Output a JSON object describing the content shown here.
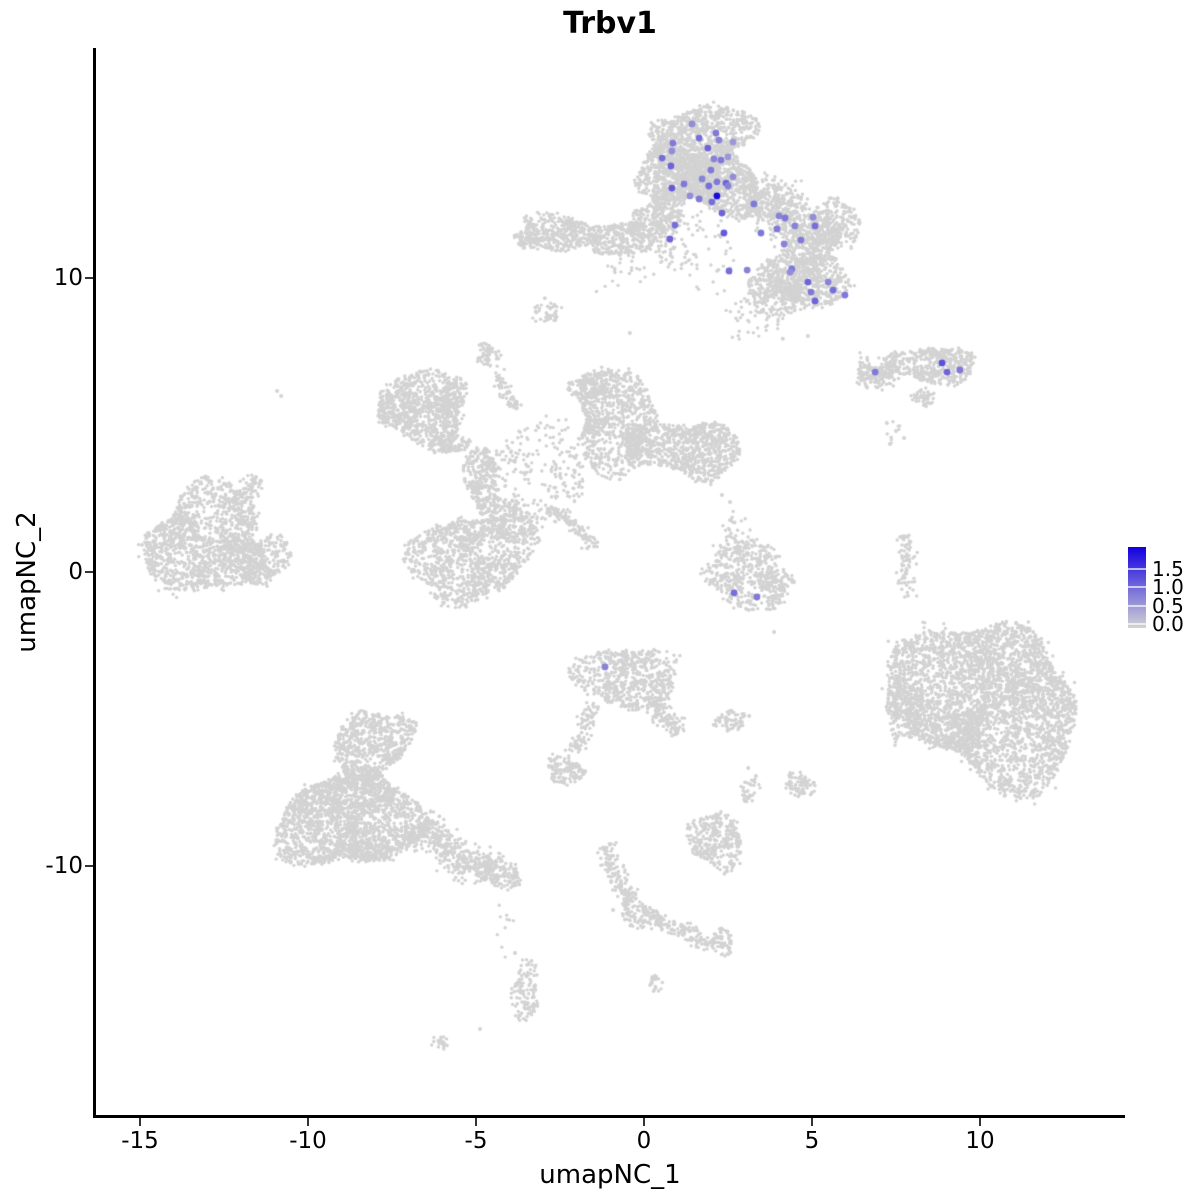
{
  "chart_data": {
    "type": "scatter",
    "title": "Trbv1",
    "xlabel": "umapNC_1",
    "ylabel": "umapNC_2",
    "x_tick_labels": [
      "-15",
      "-10",
      "-5",
      "0",
      "5",
      "10"
    ],
    "x_tick_values": [
      -15,
      -10,
      -5,
      0,
      5,
      10
    ],
    "y_tick_labels": [
      "10",
      "0",
      "-10"
    ],
    "y_tick_values": [
      10,
      0,
      -10
    ],
    "xlim": [
      -16.3,
      14.3
    ],
    "ylim": [
      -18.6,
      17.8
    ],
    "grid": false,
    "legend_position": "right",
    "legend": {
      "tick_labels": [
        "1.5",
        "1.0",
        "0.5",
        "0.0"
      ],
      "tick_values": [
        1.5,
        1.0,
        0.5,
        0.0
      ],
      "min": 0,
      "max": 2.1,
      "low_color": "#d3d3d3",
      "high_color": "#1200e0"
    },
    "colors": {
      "background": "#ffffff",
      "gray_points": "#d3d3d3",
      "axis": "#000000"
    },
    "point_radius": {
      "gray": 1.7,
      "expressing": 3.4
    },
    "gray_clusters": {
      "blobs": [
        [
          1.67,
          14.69,
          1.49,
          1.19,
          1000,
          0
        ],
        [
          1.07,
          13.5,
          1.19,
          1.02,
          650,
          0
        ],
        [
          2.41,
          13.16,
          1.13,
          1.02,
          650,
          0
        ],
        [
          0.71,
          12.31,
          0.54,
          1.36,
          250,
          0
        ],
        [
          5.6,
          11.7,
          0.77,
          0.95,
          220,
          0
        ],
        [
          4.79,
          9.93,
          1.25,
          0.95,
          550,
          0
        ],
        [
          3.9,
          9.42,
          0.89,
          0.68,
          230,
          0
        ],
        [
          4.64,
          10.61,
          0.89,
          0.85,
          180,
          0
        ],
        [
          -0.71,
          11.36,
          1.19,
          0.61,
          300,
          0
        ],
        [
          -2.5,
          11.56,
          1.13,
          0.68,
          350,
          0
        ],
        [
          -3.45,
          11.36,
          0.42,
          0.37,
          60,
          0
        ],
        [
          0.12,
          11.8,
          0.54,
          0.75,
          150,
          0
        ],
        [
          -2.89,
          8.88,
          0.39,
          0.44,
          50,
          0
        ],
        [
          1.67,
          10.95,
          1.34,
          1.36,
          70,
          1
        ],
        [
          3.3,
          8.74,
          1.04,
          0.68,
          50,
          1
        ],
        [
          -0.57,
          10.1,
          0.89,
          0.75,
          25,
          1
        ],
        [
          8.66,
          7.04,
          1.13,
          0.71,
          400,
          0
        ],
        [
          7.47,
          4.76,
          0.36,
          0.41,
          8,
          1
        ],
        [
          -13.07,
          1.09,
          1.85,
          1.7,
          1400,
          0
        ],
        [
          -11.37,
          0.41,
          0.74,
          0.95,
          280,
          0
        ],
        [
          -4.67,
          7.35,
          0.33,
          0.44,
          60,
          0
        ],
        [
          -6.67,
          5.58,
          1.37,
          1.09,
          800,
          0
        ],
        [
          -5.63,
          6.02,
          0.36,
          0.61,
          100,
          0
        ],
        [
          -5.83,
          4.39,
          0.51,
          0.41,
          130,
          0
        ],
        [
          -4.82,
          3.2,
          0.51,
          1.12,
          260,
          0
        ],
        [
          -0.86,
          5.17,
          1.25,
          1.63,
          850,
          0
        ],
        [
          -1.46,
          6.36,
          0.74,
          0.48,
          150,
          0
        ],
        [
          1.52,
          4.15,
          1.25,
          1.09,
          750,
          0
        ],
        [
          -0.18,
          4.22,
          0.42,
          0.68,
          150,
          0
        ],
        [
          -3.24,
          3.3,
          1.79,
          1.53,
          260,
          1
        ],
        [
          -5.18,
          0.48,
          1.7,
          1.6,
          1050,
          0
        ],
        [
          -4.14,
          1.77,
          0.74,
          0.85,
          220,
          0
        ],
        [
          3.01,
          -0.1,
          1.34,
          1.09,
          420,
          0
        ],
        [
          3.9,
          -0.44,
          0.54,
          0.51,
          100,
          0
        ],
        [
          2.71,
          1.09,
          0.54,
          0.95,
          45,
          1
        ],
        [
          10.24,
          -4.42,
          2.62,
          2.79,
          3600,
          0
        ],
        [
          7.77,
          -4.69,
          0.65,
          0.95,
          220,
          0
        ],
        [
          8.51,
          -2.59,
          1.04,
          1.02,
          22,
          1
        ],
        [
          -0.48,
          -3.61,
          1.34,
          1.19,
          620,
          0
        ],
        [
          -2.35,
          -6.73,
          0.54,
          0.51,
          130,
          0
        ],
        [
          2.56,
          -5.07,
          0.54,
          0.31,
          70,
          0
        ],
        [
          3.15,
          -7.41,
          0.24,
          0.44,
          35,
          0
        ],
        [
          4.64,
          -7.24,
          0.42,
          0.44,
          80,
          0
        ],
        [
          2.14,
          -9.12,
          0.89,
          0.85,
          320,
          0
        ],
        [
          -8.1,
          -5.88,
          1.25,
          1.12,
          650,
          0
        ],
        [
          -8.75,
          -8.44,
          1.96,
          1.77,
          2100,
          0
        ],
        [
          -4.29,
          -10.27,
          0.6,
          0.51,
          140,
          0
        ],
        [
          -4.14,
          -12.01,
          0.36,
          0.85,
          10,
          1
        ],
        [
          -3.54,
          -14.29,
          0.39,
          1.02,
          120,
          0
        ],
        [
          -6.07,
          -16.02,
          0.24,
          0.24,
          22,
          0
        ],
        [
          -0.12,
          -11.67,
          0.6,
          0.44,
          110,
          0
        ],
        [
          2.32,
          -12.59,
          0.36,
          0.41,
          60,
          0
        ],
        [
          0.39,
          -13.98,
          0.21,
          0.34,
          22,
          0
        ]
      ],
      "bands": [
        [
          3.1,
          12.72,
          5.77,
          11.23,
          1.25,
          700
        ],
        [
          6.37,
          6.8,
          7.62,
          6.8,
          0.72,
          220
        ],
        [
          8.21,
          6.19,
          8.51,
          5.71,
          0.4,
          50
        ],
        [
          -12.32,
          2.11,
          -11.49,
          3.2,
          0.45,
          90
        ],
        [
          -4.38,
          6.8,
          -3.84,
          5.51,
          0.3,
          60
        ],
        [
          -2.8,
          2.28,
          -1.37,
          0.75,
          0.3,
          110
        ],
        [
          7.71,
          1.26,
          7.92,
          -0.88,
          0.36,
          80
        ],
        [
          0.33,
          -4.35,
          0.92,
          -5.54,
          0.5,
          130
        ],
        [
          -1.46,
          -4.52,
          -2.11,
          -6.22,
          0.4,
          90
        ],
        [
          -6.9,
          -8.71,
          -4.52,
          -10.2,
          0.85,
          420
        ],
        [
          -1.16,
          -9.29,
          -0.42,
          -11.33,
          0.43,
          140
        ],
        [
          0.33,
          -11.84,
          2.11,
          -12.69,
          0.4,
          120
        ]
      ],
      "singles": [
        [
          -10.92,
          6.16
        ],
        [
          -10.8,
          5.99
        ],
        [
          4.88,
          8.03
        ],
        [
          -0.42,
          8.13
        ],
        [
          3.87,
          -2.04
        ],
        [
          7.23,
          5.07
        ],
        [
          7.5,
          4.8
        ],
        [
          7.74,
          4.56
        ],
        [
          7.32,
          4.35
        ],
        [
          -0.92,
          -11.5
        ],
        [
          3.13,
          -4.9
        ],
        [
          3.1,
          -6.67
        ],
        [
          3.33,
          -6.94
        ],
        [
          -4.88,
          -15.54
        ],
        [
          -3.84,
          -12.96
        ],
        [
          2.32,
          2.62
        ],
        [
          2.56,
          2.38
        ],
        [
          4.13,
          7.93
        ]
      ]
    },
    "expressing_cells": [
      [
        1.43,
        15.24,
        0.7
      ],
      [
        2.14,
        14.93,
        0.9
      ],
      [
        1.64,
        14.76,
        1.0
      ],
      [
        2.23,
        14.69,
        0.8
      ],
      [
        2.65,
        14.63,
        0.6
      ],
      [
        1.9,
        14.42,
        1.1
      ],
      [
        0.86,
        14.59,
        0.9
      ],
      [
        0.83,
        14.32,
        0.7
      ],
      [
        0.54,
        14.08,
        1.0
      ],
      [
        2.08,
        14.05,
        0.8
      ],
      [
        2.29,
        14.01,
        0.9
      ],
      [
        2.5,
        14.12,
        0.6
      ],
      [
        0.8,
        13.81,
        1.1
      ],
      [
        1.99,
        13.67,
        0.9
      ],
      [
        1.73,
        13.37,
        0.8
      ],
      [
        1.93,
        13.13,
        1.0
      ],
      [
        2.17,
        13.27,
        0.9
      ],
      [
        2.44,
        13.23,
        1.1
      ],
      [
        2.65,
        13.44,
        0.7
      ],
      [
        2.5,
        13.13,
        0.8
      ],
      [
        1.19,
        13.2,
        0.9
      ],
      [
        0.83,
        13.06,
        1.2
      ],
      [
        2.17,
        12.79,
        2.0
      ],
      [
        1.64,
        12.69,
        0.9
      ],
      [
        1.37,
        12.79,
        0.7
      ],
      [
        2.02,
        12.59,
        1.0
      ],
      [
        3.27,
        12.52,
        0.9
      ],
      [
        2.32,
        12.21,
        1.1
      ],
      [
        4.02,
        12.11,
        0.8
      ],
      [
        4.2,
        12.04,
        0.9
      ],
      [
        5.03,
        12.07,
        0.7
      ],
      [
        5.09,
        11.77,
        1.0
      ],
      [
        3.96,
        11.67,
        0.9
      ],
      [
        4.49,
        11.77,
        0.8
      ],
      [
        2.38,
        11.53,
        1.2
      ],
      [
        3.48,
        11.53,
        0.9
      ],
      [
        4.17,
        11.16,
        0.8
      ],
      [
        4.67,
        11.29,
        0.9
      ],
      [
        0.92,
        11.8,
        1.0
      ],
      [
        0.77,
        11.33,
        1.1
      ],
      [
        4.4,
        10.31,
        0.9
      ],
      [
        2.53,
        10.24,
        1.0
      ],
      [
        3.07,
        10.27,
        0.8
      ],
      [
        4.88,
        9.86,
        1.1
      ],
      [
        4.97,
        9.52,
        0.9
      ],
      [
        5.48,
        9.86,
        0.8
      ],
      [
        5.63,
        9.59,
        1.0
      ],
      [
        5.09,
        9.22,
        1.1
      ],
      [
        4.35,
        10.2,
        0.7
      ],
      [
        5.98,
        9.42,
        0.9
      ],
      [
        6.88,
        6.8,
        0.9
      ],
      [
        8.87,
        7.11,
        1.3
      ],
      [
        9.02,
        6.8,
        1.1
      ],
      [
        9.4,
        6.87,
        0.9
      ],
      [
        2.68,
        -0.71,
        1.0
      ],
      [
        3.36,
        -0.85,
        0.9
      ],
      [
        -1.16,
        -3.23,
        0.8
      ]
    ]
  }
}
